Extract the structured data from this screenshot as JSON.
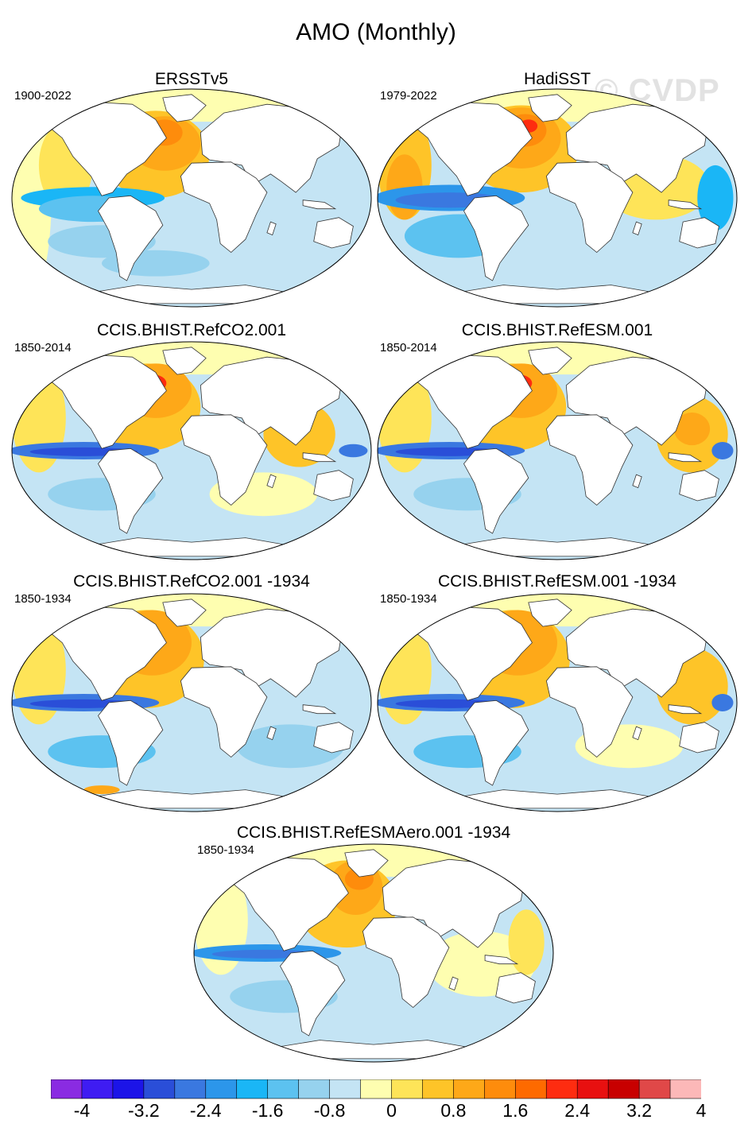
{
  "title": "AMO (Monthly)",
  "watermark": "© CVDP",
  "panels": [
    {
      "title": "ERSSTv5",
      "period": "1900-2022"
    },
    {
      "title": "HadiSST",
      "period": "1979-2022"
    },
    {
      "title": "CCIS.BHIST.RefCO2.001",
      "period": "1850-2014"
    },
    {
      "title": "CCIS.BHIST.RefESM.001",
      "period": "1850-2014"
    },
    {
      "title": "CCIS.BHIST.RefCO2.001 -1934",
      "period": "1850-1934"
    },
    {
      "title": "CCIS.BHIST.RefESM.001 -1934",
      "period": "1850-1934"
    },
    {
      "title": "CCIS.BHIST.RefESMAero.001 -1934",
      "period": "1850-1934"
    }
  ],
  "colorbar": {
    "colors": [
      "#8a2be2",
      "#3f1cf2",
      "#1c14e8",
      "#2a4ed8",
      "#3a78e0",
      "#2c96ea",
      "#1ab6f6",
      "#5cc2f0",
      "#96d2ee",
      "#c4e4f4",
      "#fefeb0",
      "#fee458",
      "#fec428",
      "#fea818",
      "#fe8c0c",
      "#fe6a00",
      "#fe2c10",
      "#e81010",
      "#c80000",
      "#e04848",
      "#fcb8b8"
    ],
    "labels": [
      "-4",
      "-3.2",
      "-2.4",
      "-1.6",
      "-0.8",
      "0",
      "0.8",
      "1.6",
      "2.4",
      "3.2",
      "4"
    ]
  }
}
